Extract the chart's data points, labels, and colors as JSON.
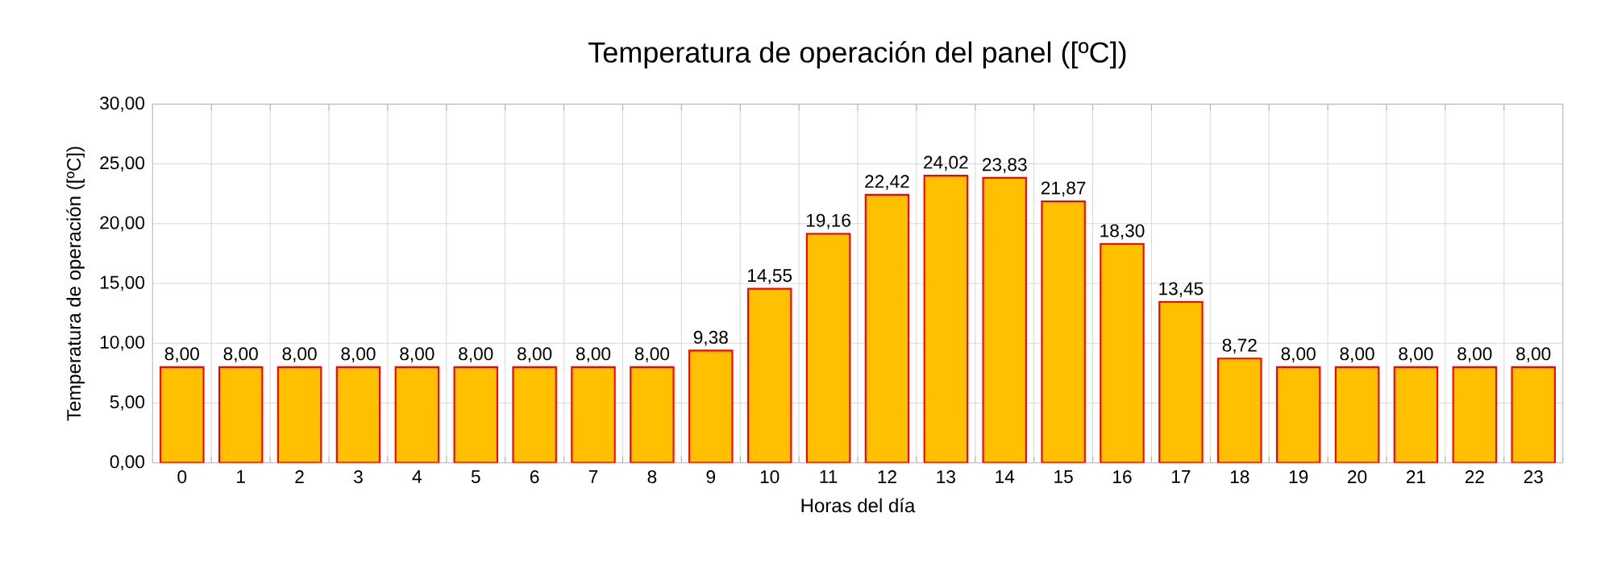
{
  "chart_data": {
    "type": "bar",
    "title": "Temperatura de operación del panel ([ºC])",
    "xlabel": "Horas del día",
    "ylabel": "Temperatura de operación ([ºC])",
    "categories": [
      "0",
      "1",
      "2",
      "3",
      "4",
      "5",
      "6",
      "7",
      "8",
      "9",
      "10",
      "11",
      "12",
      "13",
      "14",
      "15",
      "16",
      "17",
      "18",
      "19",
      "20",
      "21",
      "22",
      "23"
    ],
    "series": [
      {
        "color": "#ffc000",
        "values": [
          8.0,
          8.0,
          8.0,
          8.0,
          8.0,
          8.0,
          8.0,
          8.0,
          8.0,
          9.38,
          14.55,
          19.16,
          22.42,
          24.02,
          23.83,
          21.87,
          18.3,
          13.45,
          8.72,
          8.0,
          8.0,
          8.0,
          8.0,
          8.0
        ],
        "value_labels": [
          "8,00",
          "8,00",
          "8,00",
          "8,00",
          "8,00",
          "8,00",
          "8,00",
          "8,00",
          "8,00",
          "9,38",
          "14,55",
          "19,16",
          "22,42",
          "24,02",
          "23,83",
          "21,87",
          "18,30",
          "13,45",
          "8,72",
          "8,00",
          "8,00",
          "8,00",
          "8,00",
          "8,00"
        ]
      }
    ],
    "ylim": [
      0,
      30
    ],
    "yticks": [
      {
        "value": 0,
        "label": "0,00"
      },
      {
        "value": 5,
        "label": "5,00"
      },
      {
        "value": 10,
        "label": "10,00"
      },
      {
        "value": 15,
        "label": "15,00"
      },
      {
        "value": 20,
        "label": "20,00"
      },
      {
        "value": 25,
        "label": "25,00"
      },
      {
        "value": 30,
        "label": "30,00"
      }
    ],
    "grid": true
  }
}
